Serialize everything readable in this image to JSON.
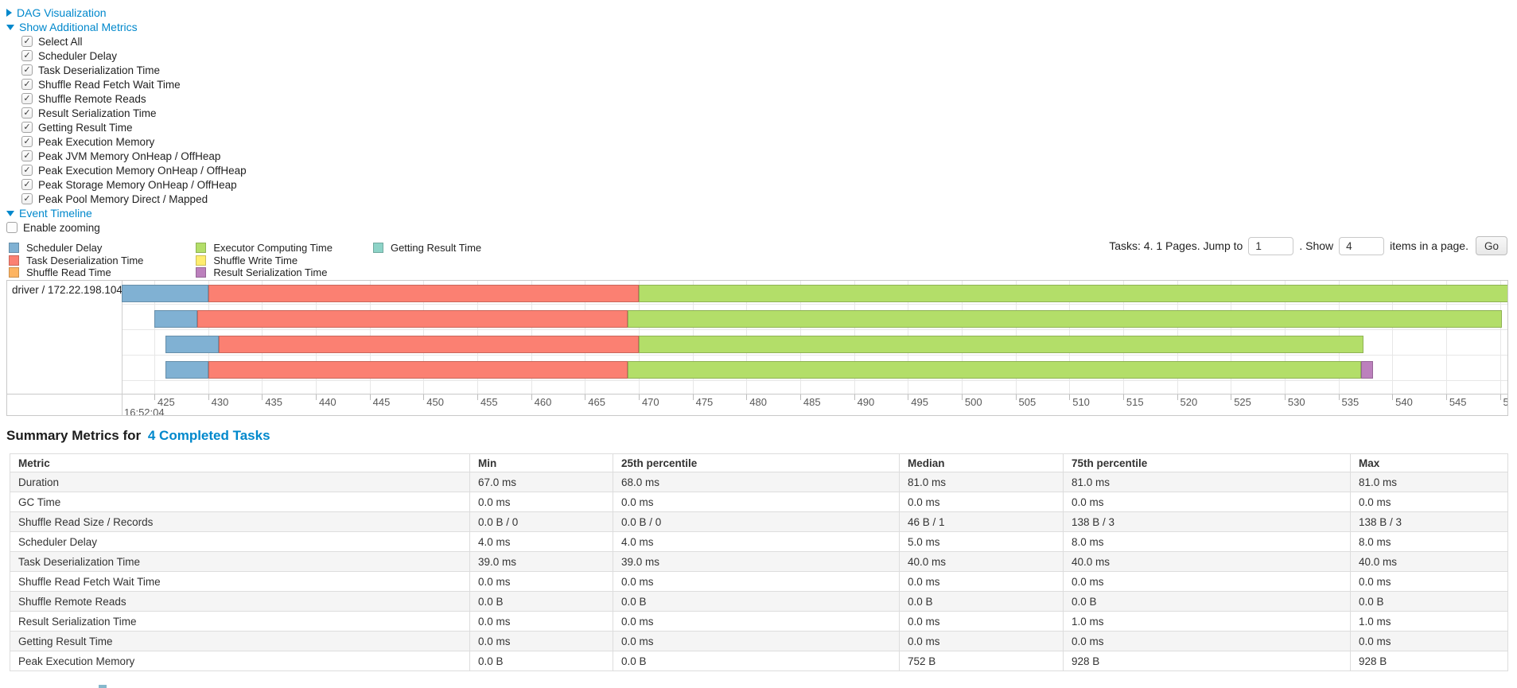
{
  "colors": {
    "link": "#0088cc",
    "segments": {
      "scheduler-delay": {
        "fill": "#80B1D3",
        "stroke": "#668EA9"
      },
      "task-deserialization": {
        "fill": "#FB8072",
        "stroke": "#C9665B"
      },
      "shuffle-read": {
        "fill": "#FDB462",
        "stroke": "#CA904E"
      },
      "executor-computing": {
        "fill": "#B3DE69",
        "stroke": "#8FB254"
      },
      "shuffle-write": {
        "fill": "#FFED6F",
        "stroke": "#CCBE59"
      },
      "result-serialization": {
        "fill": "#BC80BD",
        "stroke": "#966697"
      },
      "getting-result": {
        "fill": "#8DD3C7",
        "stroke": "#71A99F"
      }
    }
  },
  "controls": {
    "dag_label": "DAG Visualization",
    "metrics_label": "Show Additional Metrics",
    "metric_items": [
      "Select All",
      "Scheduler Delay",
      "Task Deserialization Time",
      "Shuffle Read Fetch Wait Time",
      "Shuffle Remote Reads",
      "Result Serialization Time",
      "Getting Result Time",
      "Peak Execution Memory",
      "Peak JVM Memory OnHeap / OffHeap",
      "Peak Execution Memory OnHeap / OffHeap",
      "Peak Storage Memory OnHeap / OffHeap",
      "Peak Pool Memory Direct / Mapped"
    ],
    "event_timeline_label": "Event Timeline",
    "enable_zooming_label": "Enable zooming"
  },
  "legend": {
    "columns": [
      [
        {
          "label": "Scheduler Delay",
          "key": "scheduler-delay"
        },
        {
          "label": "Task Deserialization Time",
          "key": "task-deserialization"
        },
        {
          "label": "Shuffle Read Time",
          "key": "shuffle-read"
        }
      ],
      [
        {
          "label": "Executor Computing Time",
          "key": "executor-computing"
        },
        {
          "label": "Shuffle Write Time",
          "key": "shuffle-write"
        },
        {
          "label": "Result Serialization Time",
          "key": "result-serialization"
        }
      ],
      [
        {
          "label": "Getting Result Time",
          "key": "getting-result"
        }
      ]
    ]
  },
  "pagination": {
    "info": "Tasks: 4. 1 Pages. Jump to",
    "jump_value": "1",
    "between": ". Show",
    "show_value": "4",
    "suffix": "items in a page.",
    "go_label": "Go"
  },
  "chart_data": {
    "type": "timeline",
    "group_label": "driver / 172.22.198.104",
    "x_axis": {
      "tick_start": 425,
      "tick_end": 550,
      "step": 5,
      "base_time_label": "16:52:04"
    },
    "tasks": [
      {
        "segments": [
          {
            "name": "scheduler-delay",
            "start": 422.0,
            "end": 430.0
          },
          {
            "name": "task-deserialization",
            "start": 430.0,
            "end": 470.0
          },
          {
            "name": "executor-computing",
            "start": 470.0,
            "end": 551.5
          }
        ]
      },
      {
        "segments": [
          {
            "name": "scheduler-delay",
            "start": 425.0,
            "end": 429.0
          },
          {
            "name": "task-deserialization",
            "start": 429.0,
            "end": 469.0
          },
          {
            "name": "executor-computing",
            "start": 469.0,
            "end": 550.2
          }
        ]
      },
      {
        "segments": [
          {
            "name": "scheduler-delay",
            "start": 426.0,
            "end": 431.0
          },
          {
            "name": "task-deserialization",
            "start": 431.0,
            "end": 470.0
          },
          {
            "name": "executor-computing",
            "start": 470.0,
            "end": 537.3
          }
        ]
      },
      {
        "segments": [
          {
            "name": "scheduler-delay",
            "start": 426.0,
            "end": 430.0
          },
          {
            "name": "task-deserialization",
            "start": 430.0,
            "end": 469.0
          },
          {
            "name": "executor-computing",
            "start": 469.0,
            "end": 537.1
          },
          {
            "name": "result-serialization",
            "start": 537.1,
            "end": 538.2
          }
        ]
      }
    ]
  },
  "summary": {
    "title_prefix": "Summary Metrics for",
    "title_link": "4 Completed Tasks",
    "headers": [
      "Metric",
      "Min",
      "25th percentile",
      "Median",
      "75th percentile",
      "Max"
    ],
    "rows": [
      [
        "Duration",
        "67.0 ms",
        "68.0 ms",
        "81.0 ms",
        "81.0 ms",
        "81.0 ms"
      ],
      [
        "GC Time",
        "0.0 ms",
        "0.0 ms",
        "0.0 ms",
        "0.0 ms",
        "0.0 ms"
      ],
      [
        "Shuffle Read Size / Records",
        "0.0 B / 0",
        "0.0 B / 0",
        "46 B / 1",
        "138 B / 3",
        "138 B / 3"
      ],
      [
        "Scheduler Delay",
        "4.0 ms",
        "4.0 ms",
        "5.0 ms",
        "8.0 ms",
        "8.0 ms"
      ],
      [
        "Task Deserialization Time",
        "39.0 ms",
        "39.0 ms",
        "40.0 ms",
        "40.0 ms",
        "40.0 ms"
      ],
      [
        "Shuffle Read Fetch Wait Time",
        "0.0 ms",
        "0.0 ms",
        "0.0 ms",
        "0.0 ms",
        "0.0 ms"
      ],
      [
        "Shuffle Remote Reads",
        "0.0 B",
        "0.0 B",
        "0.0 B",
        "0.0 B",
        "0.0 B"
      ],
      [
        "Result Serialization Time",
        "0.0 ms",
        "0.0 ms",
        "0.0 ms",
        "1.0 ms",
        "1.0 ms"
      ],
      [
        "Getting Result Time",
        "0.0 ms",
        "0.0 ms",
        "0.0 ms",
        "0.0 ms",
        "0.0 ms"
      ],
      [
        "Peak Execution Memory",
        "0.0 B",
        "0.0 B",
        "752 B",
        "928 B",
        "928 B"
      ]
    ]
  }
}
